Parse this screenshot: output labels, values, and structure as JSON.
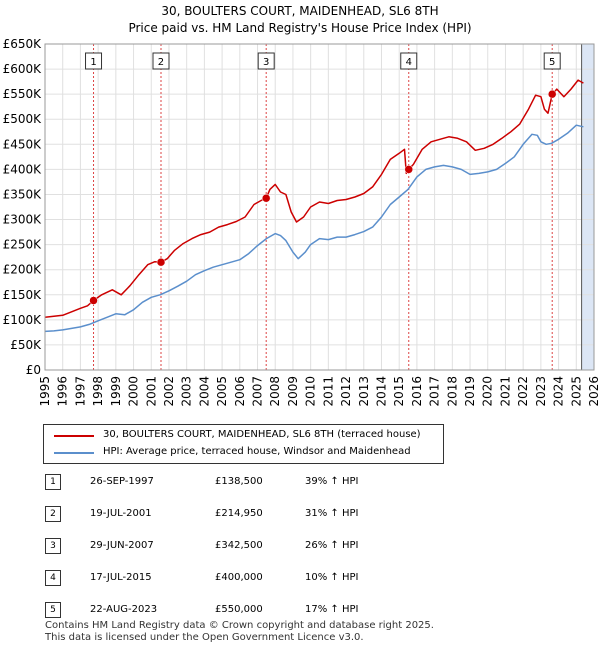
{
  "header": {
    "line1": "30, BOULTERS COURT, MAIDENHEAD, SL6 8TH",
    "line2": "Price paid vs. HM Land Registry's House Price Index (HPI)"
  },
  "colors": {
    "property": "#cc0000",
    "hpi": "#5b8fcc",
    "future_shade": "#dce6f5",
    "grid": "#e0e0e0",
    "marker_line": "#dd4444"
  },
  "chart_data": {
    "type": "line",
    "title": "30, BOULTERS COURT, MAIDENHEAD, SL6 8TH",
    "subtitle": "Price paid vs. HM Land Registry's House Price Index (HPI)",
    "xlabel": "",
    "ylabel": "",
    "xlim": [
      1995,
      2026
    ],
    "ylim": [
      0,
      650000
    ],
    "grid": true,
    "forecast_start": 2025.3,
    "y_ticks": [
      {
        "value": 0,
        "label": "£0"
      },
      {
        "value": 50000,
        "label": "£50K"
      },
      {
        "value": 100000,
        "label": "£100K"
      },
      {
        "value": 150000,
        "label": "£150K"
      },
      {
        "value": 200000,
        "label": "£200K"
      },
      {
        "value": 250000,
        "label": "£250K"
      },
      {
        "value": 300000,
        "label": "£300K"
      },
      {
        "value": 350000,
        "label": "£350K"
      },
      {
        "value": 400000,
        "label": "£400K"
      },
      {
        "value": 450000,
        "label": "£450K"
      },
      {
        "value": 500000,
        "label": "£500K"
      },
      {
        "value": 550000,
        "label": "£550K"
      },
      {
        "value": 600000,
        "label": "£600K"
      },
      {
        "value": 650000,
        "label": "£650K"
      }
    ],
    "x_ticks": [
      "1995",
      "1996",
      "1997",
      "1998",
      "1999",
      "2000",
      "2001",
      "2002",
      "2003",
      "2004",
      "2005",
      "2006",
      "2007",
      "2008",
      "2009",
      "2010",
      "2011",
      "2012",
      "2013",
      "2014",
      "2015",
      "2016",
      "2017",
      "2018",
      "2019",
      "2020",
      "2021",
      "2022",
      "2023",
      "2024",
      "2025",
      "2026"
    ],
    "series": [
      {
        "name": "30, BOULTERS COURT, MAIDENHEAD, SL6 8TH (terraced house)",
        "color": "#cc0000",
        "points": [
          [
            1995.0,
            105000
          ],
          [
            1995.5,
            107000
          ],
          [
            1996.0,
            109000
          ],
          [
            1996.5,
            116000
          ],
          [
            1997.0,
            123000
          ],
          [
            1997.4,
            128000
          ],
          [
            1997.74,
            138500
          ],
          [
            1998.2,
            150000
          ],
          [
            1998.8,
            160000
          ],
          [
            1999.3,
            150000
          ],
          [
            1999.8,
            168000
          ],
          [
            2000.3,
            190000
          ],
          [
            2000.8,
            210000
          ],
          [
            2001.2,
            216000
          ],
          [
            2001.55,
            214950
          ],
          [
            2001.9,
            222000
          ],
          [
            2002.3,
            238000
          ],
          [
            2002.8,
            252000
          ],
          [
            2003.3,
            262000
          ],
          [
            2003.8,
            270000
          ],
          [
            2004.3,
            275000
          ],
          [
            2004.8,
            285000
          ],
          [
            2005.3,
            290000
          ],
          [
            2005.8,
            296000
          ],
          [
            2006.3,
            305000
          ],
          [
            2006.8,
            330000
          ],
          [
            2007.2,
            338000
          ],
          [
            2007.49,
            342500
          ],
          [
            2007.7,
            360000
          ],
          [
            2008.0,
            370000
          ],
          [
            2008.3,
            355000
          ],
          [
            2008.6,
            350000
          ],
          [
            2008.9,
            315000
          ],
          [
            2009.2,
            295000
          ],
          [
            2009.6,
            305000
          ],
          [
            2010.0,
            325000
          ],
          [
            2010.5,
            335000
          ],
          [
            2011.0,
            332000
          ],
          [
            2011.5,
            338000
          ],
          [
            2012.0,
            340000
          ],
          [
            2012.5,
            345000
          ],
          [
            2013.0,
            352000
          ],
          [
            2013.5,
            365000
          ],
          [
            2014.0,
            390000
          ],
          [
            2014.5,
            420000
          ],
          [
            2015.0,
            432000
          ],
          [
            2015.3,
            440000
          ],
          [
            2015.4,
            392000
          ],
          [
            2015.54,
            400000
          ],
          [
            2015.8,
            410000
          ],
          [
            2016.3,
            440000
          ],
          [
            2016.8,
            455000
          ],
          [
            2017.3,
            460000
          ],
          [
            2017.8,
            465000
          ],
          [
            2018.3,
            462000
          ],
          [
            2018.8,
            455000
          ],
          [
            2019.3,
            438000
          ],
          [
            2019.8,
            442000
          ],
          [
            2020.3,
            450000
          ],
          [
            2020.8,
            462000
          ],
          [
            2021.3,
            475000
          ],
          [
            2021.8,
            490000
          ],
          [
            2022.3,
            520000
          ],
          [
            2022.7,
            548000
          ],
          [
            2023.0,
            545000
          ],
          [
            2023.2,
            520000
          ],
          [
            2023.4,
            512000
          ],
          [
            2023.64,
            550000
          ],
          [
            2023.9,
            560000
          ],
          [
            2024.3,
            545000
          ],
          [
            2024.7,
            560000
          ],
          [
            2025.1,
            578000
          ],
          [
            2025.4,
            572000
          ]
        ]
      },
      {
        "name": "HPI: Average price, terraced house, Windsor and Maidenhead",
        "color": "#5b8fcc",
        "points": [
          [
            1995.0,
            77000
          ],
          [
            1995.5,
            78000
          ],
          [
            1996.0,
            80000
          ],
          [
            1996.5,
            83000
          ],
          [
            1997.0,
            86000
          ],
          [
            1997.5,
            91000
          ],
          [
            1998.0,
            98000
          ],
          [
            1998.5,
            105000
          ],
          [
            1999.0,
            112000
          ],
          [
            1999.5,
            110000
          ],
          [
            2000.0,
            120000
          ],
          [
            2000.5,
            135000
          ],
          [
            2001.0,
            145000
          ],
          [
            2001.5,
            150000
          ],
          [
            2002.0,
            158000
          ],
          [
            2002.5,
            167000
          ],
          [
            2003.0,
            177000
          ],
          [
            2003.5,
            190000
          ],
          [
            2004.0,
            198000
          ],
          [
            2004.5,
            205000
          ],
          [
            2005.0,
            210000
          ],
          [
            2005.5,
            215000
          ],
          [
            2006.0,
            220000
          ],
          [
            2006.5,
            232000
          ],
          [
            2007.0,
            248000
          ],
          [
            2007.5,
            262000
          ],
          [
            2008.0,
            272000
          ],
          [
            2008.3,
            268000
          ],
          [
            2008.6,
            258000
          ],
          [
            2009.0,
            235000
          ],
          [
            2009.3,
            222000
          ],
          [
            2009.7,
            235000
          ],
          [
            2010.0,
            250000
          ],
          [
            2010.5,
            262000
          ],
          [
            2011.0,
            260000
          ],
          [
            2011.5,
            265000
          ],
          [
            2012.0,
            265000
          ],
          [
            2012.5,
            270000
          ],
          [
            2013.0,
            276000
          ],
          [
            2013.5,
            285000
          ],
          [
            2014.0,
            305000
          ],
          [
            2014.5,
            330000
          ],
          [
            2015.0,
            345000
          ],
          [
            2015.5,
            360000
          ],
          [
            2016.0,
            385000
          ],
          [
            2016.5,
            400000
          ],
          [
            2017.0,
            405000
          ],
          [
            2017.5,
            408000
          ],
          [
            2018.0,
            405000
          ],
          [
            2018.5,
            400000
          ],
          [
            2019.0,
            390000
          ],
          [
            2019.5,
            392000
          ],
          [
            2020.0,
            395000
          ],
          [
            2020.5,
            400000
          ],
          [
            2021.0,
            412000
          ],
          [
            2021.5,
            425000
          ],
          [
            2022.0,
            450000
          ],
          [
            2022.5,
            470000
          ],
          [
            2022.8,
            468000
          ],
          [
            2023.0,
            455000
          ],
          [
            2023.3,
            450000
          ],
          [
            2023.6,
            452000
          ],
          [
            2024.0,
            460000
          ],
          [
            2024.5,
            472000
          ],
          [
            2025.0,
            488000
          ],
          [
            2025.4,
            485000
          ]
        ]
      }
    ],
    "sales": [
      {
        "id": "1",
        "x": 1997.74,
        "price": 138500
      },
      {
        "id": "2",
        "x": 2001.55,
        "price": 214950
      },
      {
        "id": "3",
        "x": 2007.49,
        "price": 342500
      },
      {
        "id": "4",
        "x": 2015.54,
        "price": 400000
      },
      {
        "id": "5",
        "x": 2023.64,
        "price": 550000
      }
    ]
  },
  "legend": {
    "property_label": "30, BOULTERS COURT, MAIDENHEAD, SL6 8TH (terraced house)",
    "hpi_label": "HPI: Average price, terraced house, Windsor and Maidenhead"
  },
  "sales_table": [
    {
      "num": "1",
      "date": "26-SEP-1997",
      "price": "£138,500",
      "hpi": "39% ↑ HPI"
    },
    {
      "num": "2",
      "date": "19-JUL-2001",
      "price": "£214,950",
      "hpi": "31% ↑ HPI"
    },
    {
      "num": "3",
      "date": "29-JUN-2007",
      "price": "£342,500",
      "hpi": "26% ↑ HPI"
    },
    {
      "num": "4",
      "date": "17-JUL-2015",
      "price": "£400,000",
      "hpi": "10% ↑ HPI"
    },
    {
      "num": "5",
      "date": "22-AUG-2023",
      "price": "£550,000",
      "hpi": "17% ↑ HPI"
    }
  ],
  "footer": {
    "line1": "Contains HM Land Registry data © Crown copyright and database right 2025.",
    "line2": "This data is licensed under the Open Government Licence v3.0."
  }
}
